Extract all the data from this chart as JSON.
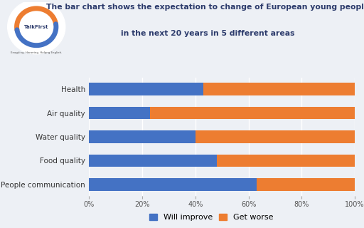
{
  "categories": [
    "People communication",
    "Food quality",
    "Water quality",
    "Air quality",
    "Health"
  ],
  "will_improve": [
    63,
    48,
    40,
    23,
    43
  ],
  "get_worse": [
    37,
    52,
    60,
    77,
    57
  ],
  "color_improve": "#4472C4",
  "color_worse": "#ED7D31",
  "title_line1": "The bar chart shows the expectation to change of European young people",
  "title_line2": "in the next 20 years in 5 different areas",
  "legend_improve": "Will improve",
  "legend_worse": "Get worse",
  "bg_color": "#edf0f5",
  "title_color": "#2b3a6b",
  "xlim": [
    0,
    100
  ],
  "xticks": [
    0,
    20,
    40,
    60,
    80,
    100
  ],
  "xtick_labels": [
    "0%",
    "20%",
    "40%",
    "60%",
    "80%",
    "100%"
  ]
}
